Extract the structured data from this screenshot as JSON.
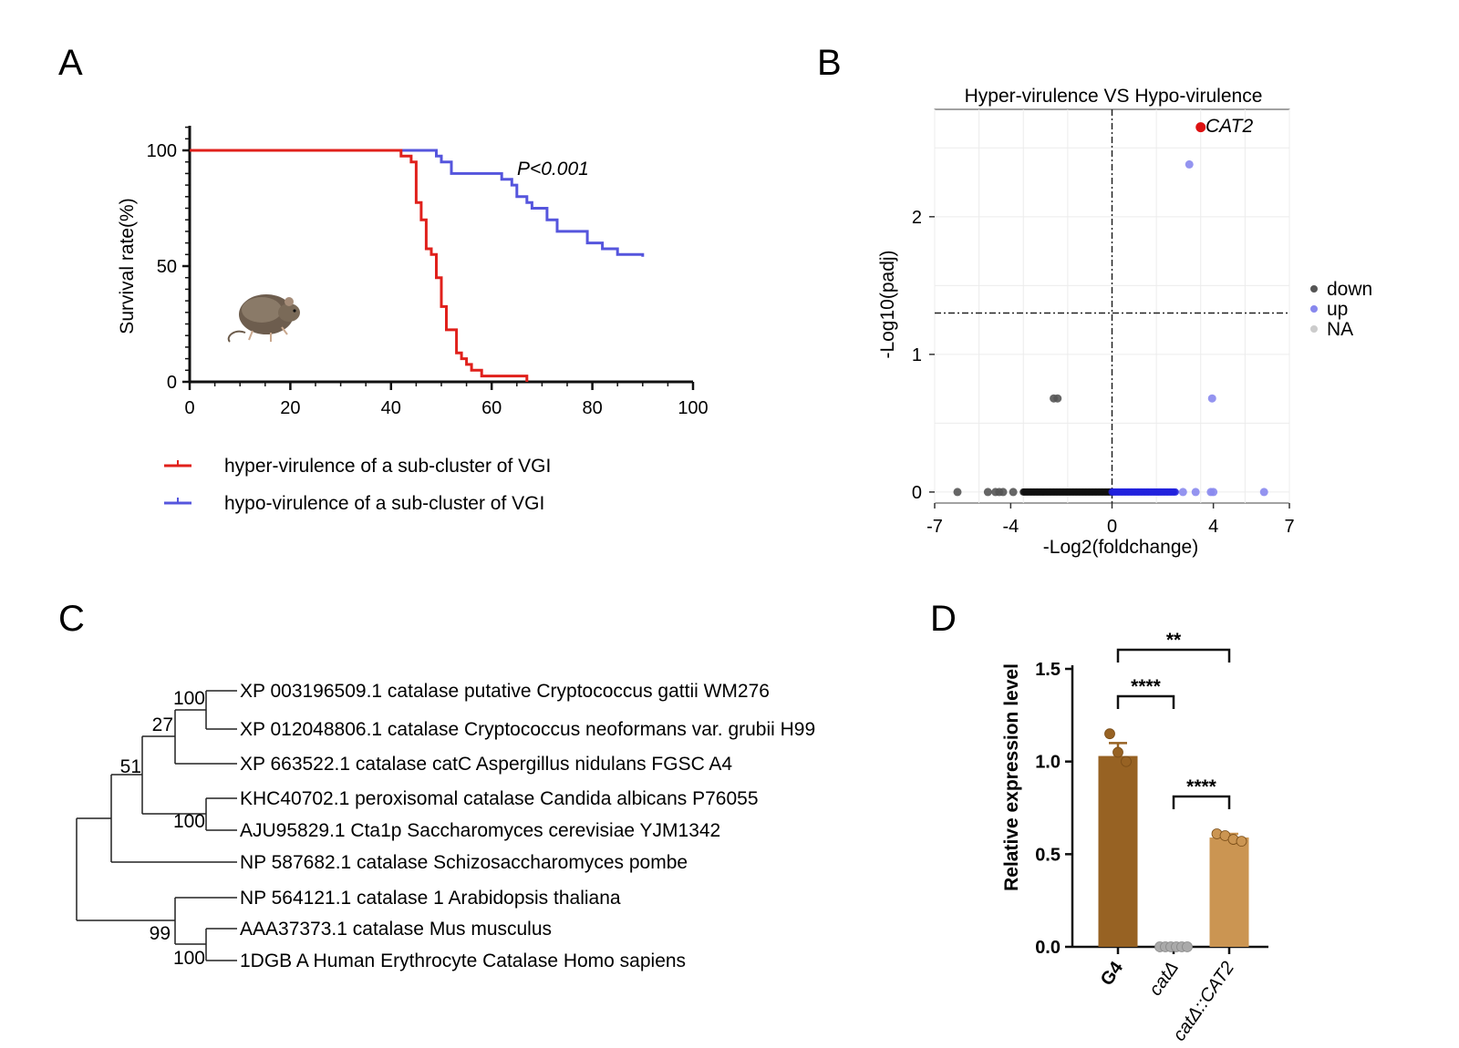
{
  "panels": {
    "A": {
      "label": "A",
      "chart_data": {
        "type": "line",
        "ylabel": "Survival rate(%)",
        "xlabel": "",
        "xlim": [
          0,
          100
        ],
        "ylim": [
          0,
          100
        ],
        "xticks": [
          "0",
          "20",
          "40",
          "60",
          "80",
          "100"
        ],
        "yticks": [
          "0",
          "50",
          "100"
        ],
        "annotation": "P<0.001",
        "series": [
          {
            "name": "hyper-virulence of a sub-cluster of VGI",
            "color": "#e0201b",
            "steps": [
              [
                0,
                100
              ],
              [
                42,
                100
              ],
              [
                42,
                97.5
              ],
              [
                44,
                97.5
              ],
              [
                44,
                95
              ],
              [
                45,
                95
              ],
              [
                45,
                77.5
              ],
              [
                46,
                77.5
              ],
              [
                46,
                70
              ],
              [
                47,
                70
              ],
              [
                47,
                57.5
              ],
              [
                48,
                57.5
              ],
              [
                48,
                55
              ],
              [
                49,
                55
              ],
              [
                49,
                45
              ],
              [
                50,
                45
              ],
              [
                50,
                32.5
              ],
              [
                51,
                32.5
              ],
              [
                51,
                22.5
              ],
              [
                53,
                22.5
              ],
              [
                53,
                12.5
              ],
              [
                54,
                12.5
              ],
              [
                54,
                10
              ],
              [
                55,
                10
              ],
              [
                55,
                7.5
              ],
              [
                56,
                7.5
              ],
              [
                56,
                5
              ],
              [
                58,
                5
              ],
              [
                58,
                2.5
              ],
              [
                67,
                2.5
              ],
              [
                67,
                0
              ]
            ]
          },
          {
            "name": "hypo-virulence of a sub-cluster of VGI",
            "color": "#5555dd",
            "steps": [
              [
                0,
                100
              ],
              [
                49,
                100
              ],
              [
                49,
                97.5
              ],
              [
                50,
                97.5
              ],
              [
                50,
                95
              ],
              [
                52,
                95
              ],
              [
                52,
                90
              ],
              [
                62,
                90
              ],
              [
                62,
                87.5
              ],
              [
                64,
                87.5
              ],
              [
                64,
                85
              ],
              [
                65,
                85
              ],
              [
                65,
                80
              ],
              [
                67,
                80
              ],
              [
                67,
                77.5
              ],
              [
                68,
                77.5
              ],
              [
                68,
                75
              ],
              [
                71,
                75
              ],
              [
                71,
                70
              ],
              [
                73,
                70
              ],
              [
                73,
                65
              ],
              [
                79,
                65
              ],
              [
                79,
                60
              ],
              [
                82,
                60
              ],
              [
                82,
                57.5
              ],
              [
                85,
                57.5
              ],
              [
                85,
                55
              ],
              [
                90,
                55
              ],
              [
                90,
                54
              ]
            ]
          }
        ]
      }
    },
    "B": {
      "label": "B",
      "chart_data": {
        "type": "scatter",
        "title": "Hyper-virulence VS Hypo-virulence",
        "xlabel": "-Log2(foldchange)",
        "ylabel": "-Log10(padj)",
        "xlim": [
          -7,
          7
        ],
        "ylim": [
          -0.08,
          2.78
        ],
        "xticks": [
          "-7",
          "-4",
          "0",
          "4",
          "7"
        ],
        "yticks": [
          "0",
          "1",
          "2"
        ],
        "thresholds": {
          "x": 0,
          "y": 1.3
        },
        "legend": {
          "placement": "right",
          "entries": [
            "down",
            "up",
            "NA"
          ]
        },
        "highlight": {
          "label": "CAT2",
          "x": 3.5,
          "y": 2.65,
          "color": "#dd1111"
        },
        "groups": [
          {
            "name": "down",
            "color": "#555555",
            "points": [
              [
                -6.1,
                0
              ],
              [
                -4.9,
                0
              ],
              [
                -4.6,
                0
              ],
              [
                -4.45,
                0
              ],
              [
                -4.3,
                0
              ],
              [
                -3.9,
                0
              ],
              [
                -2.3,
                0.68
              ],
              [
                -2.15,
                0.68
              ]
            ],
            "band": [
              -3.5,
              0
            ]
          },
          {
            "name": "up",
            "color": "#8888ee",
            "points": [
              [
                3.05,
                2.38
              ],
              [
                3.95,
                0.68
              ],
              [
                2.8,
                0
              ],
              [
                3.3,
                0
              ],
              [
                3.9,
                0
              ],
              [
                4.0,
                0
              ],
              [
                6.0,
                0
              ]
            ],
            "band": [
              0,
              2.5
            ]
          }
        ]
      }
    },
    "C": {
      "label": "C",
      "tree": {
        "leaves": [
          "XP 003196509.1 catalase putative Cryptococcus gattii WM276",
          "XP 012048806.1 catalase Cryptococcus neoformans var. grubii H99",
          "XP 663522.1 catalase catC Aspergillus nidulans FGSC A4",
          "KHC40702.1 peroxisomal catalase Candida albicans P76055",
          "AJU95829.1 Cta1p Saccharomyces cerevisiae YJM1342",
          "NP 587682.1 catalase Schizosaccharomyces pombe",
          "NP 564121.1 catalase 1 Arabidopsis thaliana",
          "AAA37373.1 catalase Mus musculus",
          "1DGB A Human Erythrocyte Catalase Homo sapiens"
        ],
        "bootstrap": [
          "100",
          "27",
          "51",
          "100",
          "99",
          "100"
        ]
      }
    },
    "D": {
      "label": "D",
      "chart_data": {
        "type": "bar",
        "ylabel": "Relative expression level",
        "ylim": [
          0,
          1.5
        ],
        "yticks": [
          "0.0",
          "0.5",
          "1.0",
          "1.5"
        ],
        "categories": [
          "G4",
          "catΔ",
          "catΔ::CAT2"
        ],
        "values": [
          1.03,
          0.0,
          0.59
        ],
        "errors": [
          0.07,
          0.0,
          0.02
        ],
        "colors": [
          "#976223",
          "#aaaaaa",
          "#cb9552"
        ],
        "replicates": [
          [
            1.15,
            1.05,
            1.0
          ],
          [
            0,
            0,
            0,
            0,
            0,
            0
          ],
          [
            0.61,
            0.6,
            0.58,
            0.57
          ]
        ],
        "significance": [
          {
            "from": 0,
            "to": 2,
            "label": "**"
          },
          {
            "from": 0,
            "to": 1,
            "label": "****"
          },
          {
            "from": 1,
            "to": 2,
            "label": "****"
          }
        ]
      }
    }
  }
}
